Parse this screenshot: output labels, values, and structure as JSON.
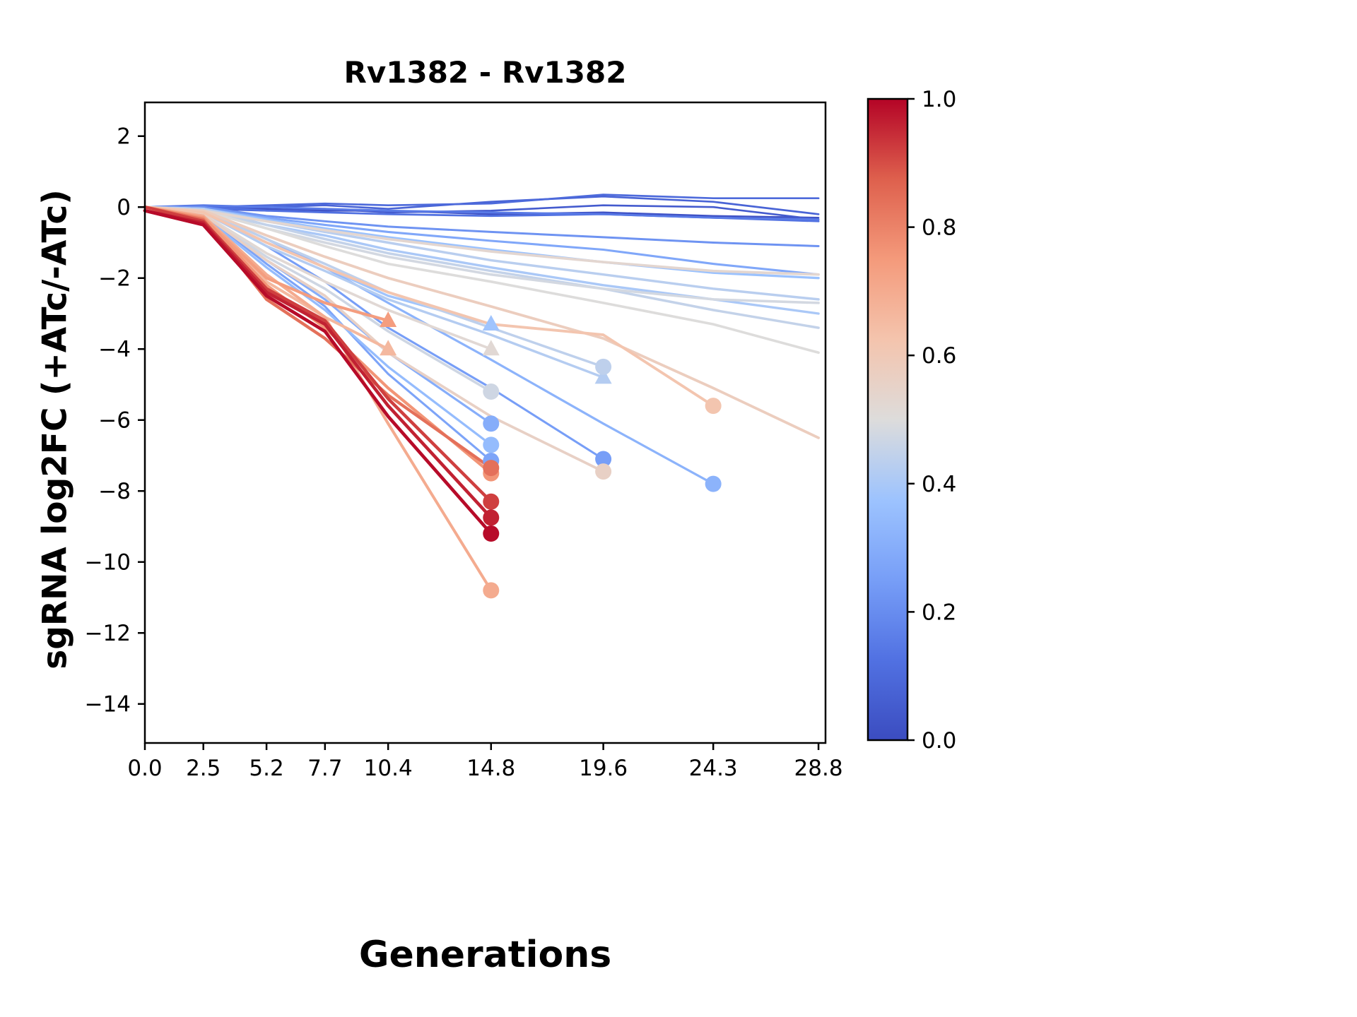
{
  "chart_data": {
    "type": "line",
    "title": "Rv1382 - Rv1382",
    "xlabel": "Generations",
    "ylabel": "sgRNA log2FC (+ATc/-ATc)",
    "x": [
      0.0,
      2.5,
      5.2,
      7.7,
      10.4,
      14.8,
      19.6,
      24.3,
      28.8
    ],
    "x_tick_labels": [
      "0.0",
      "2.5",
      "5.2",
      "7.7",
      "10.4",
      "14.8",
      "19.6",
      "24.3",
      "28.8"
    ],
    "y_ticks": [
      2,
      0,
      -2,
      -4,
      -6,
      -8,
      -10,
      -12,
      -14
    ],
    "y_tick_labels": [
      "2",
      "0",
      "−2",
      "−4",
      "−6",
      "−8",
      "−10",
      "−12",
      "−14"
    ],
    "xlim": [
      0,
      29.1
    ],
    "ylim": [
      -15.1,
      2.95
    ],
    "grid": false,
    "legend": "none",
    "plot_bg": "#ffffff",
    "colorbar": {
      "cmap": "coolwarm",
      "vmin": 0.0,
      "vmax": 1.0,
      "tick_values": [
        1.0,
        0.8,
        0.6,
        0.4,
        0.2,
        0.0
      ],
      "tick_labels": [
        "1.0",
        "0.8",
        "0.6",
        "0.4",
        "0.2",
        "0.0"
      ]
    },
    "series": [
      {
        "value": 0.99,
        "marker": "circle",
        "y": [
          -0.1,
          -0.5,
          -2.5,
          -3.5,
          -5.9,
          -9.2
        ]
      },
      {
        "value": 0.96,
        "marker": "circle",
        "y": [
          -0.1,
          -0.45,
          -2.4,
          -3.3,
          -5.6,
          -8.75
        ]
      },
      {
        "value": 0.92,
        "marker": "circle",
        "y": [
          0,
          -0.4,
          -2.3,
          -3.2,
          -5.4,
          -8.3
        ]
      },
      {
        "value": 0.84,
        "marker": "circle",
        "y": [
          0,
          -0.35,
          -2.6,
          -3.7,
          -5.3,
          -7.35
        ]
      },
      {
        "value": 0.76,
        "marker": "circle",
        "y": [
          0,
          -0.3,
          -2.2,
          -3.4,
          -5.1,
          -7.5
        ]
      },
      {
        "value": 0.7,
        "marker": "circle",
        "y": [
          0,
          -0.25,
          -1.9,
          -3.1,
          -6.1,
          -10.8
        ]
      },
      {
        "value": 0.74,
        "marker": "triangle",
        "y": [
          0,
          -0.3,
          -2.0,
          -2.7,
          -3.2
        ]
      },
      {
        "value": 0.66,
        "marker": "triangle",
        "y": [
          0,
          -0.35,
          -2.1,
          -3.1,
          -4.0
        ]
      },
      {
        "value": 0.52,
        "marker": "triangle",
        "y": [
          0,
          -0.2,
          -1.3,
          -2.1,
          -2.9,
          -4.0
        ]
      },
      {
        "value": 0.38,
        "marker": "triangle",
        "y": [
          0,
          -0.15,
          -1.0,
          -1.7,
          -2.5,
          -3.3
        ]
      },
      {
        "value": 0.42,
        "marker": "triangle",
        "y": [
          0,
          -0.15,
          -1.1,
          -1.8,
          -2.6,
          -3.6,
          -4.8
        ]
      },
      {
        "value": 0.47,
        "marker": "circle",
        "y": [
          0,
          -0.2,
          -1.4,
          -2.3,
          -3.5,
          -5.2
        ]
      },
      {
        "value": 0.44,
        "marker": "circle",
        "y": [
          0,
          -0.1,
          -0.9,
          -1.6,
          -2.4,
          -3.4,
          -4.5
        ]
      },
      {
        "value": 0.3,
        "marker": "circle",
        "y": [
          0,
          -0.2,
          -1.5,
          -2.6,
          -4.1,
          -6.1
        ]
      },
      {
        "value": 0.35,
        "marker": "circle",
        "y": [
          0,
          -0.25,
          -1.7,
          -2.9,
          -4.5,
          -6.7
        ]
      },
      {
        "value": 0.25,
        "marker": "circle",
        "y": [
          0,
          -0.15,
          -1.1,
          -2.1,
          -3.4,
          -5.1,
          -7.1
        ]
      },
      {
        "value": 0.32,
        "marker": "circle",
        "y": [
          0,
          -0.1,
          -0.9,
          -1.7,
          -2.7,
          -4.3,
          -6.1,
          -7.8
        ]
      },
      {
        "value": 0.27,
        "marker": "circle",
        "y": [
          0,
          -0.2,
          -1.6,
          -2.8,
          -4.7,
          -7.15
        ]
      },
      {
        "value": 0.56,
        "marker": "circle",
        "y": [
          0,
          -0.2,
          -1.5,
          -2.5,
          -4.1,
          -5.9,
          -7.45
        ]
      },
      {
        "value": 0.62,
        "marker": "circle",
        "y": [
          0,
          -0.15,
          -1.0,
          -1.7,
          -2.4,
          -3.3,
          -3.6,
          -5.6
        ]
      },
      {
        "value": 0.58,
        "marker": "none",
        "y": [
          0,
          -0.1,
          -0.8,
          -1.4,
          -2.0,
          -2.8,
          -3.7,
          -5.1,
          -6.5
        ]
      },
      {
        "value": 0.5,
        "marker": "none",
        "y": [
          0,
          -0.1,
          -0.6,
          -1.1,
          -1.6,
          -2.1,
          -2.7,
          -3.3,
          -4.1
        ]
      },
      {
        "value": 0.45,
        "marker": "none",
        "y": [
          0,
          -0.1,
          -0.5,
          -0.9,
          -1.3,
          -1.8,
          -2.3,
          -2.9,
          -3.4
        ]
      },
      {
        "value": 0.4,
        "marker": "none",
        "y": [
          0,
          -0.05,
          -0.5,
          -0.8,
          -1.2,
          -1.7,
          -2.2,
          -2.6,
          -3.0
        ]
      },
      {
        "value": 0.48,
        "marker": "none",
        "y": [
          0,
          -0.1,
          -0.6,
          -1.0,
          -1.4,
          -1.9,
          -2.3,
          -2.6,
          -2.7
        ]
      },
      {
        "value": 0.43,
        "marker": "none",
        "y": [
          0,
          -0.05,
          -0.4,
          -0.7,
          -1.0,
          -1.5,
          -1.9,
          -2.3,
          -2.6
        ]
      },
      {
        "value": 0.37,
        "marker": "none",
        "y": [
          0,
          -0.05,
          -0.35,
          -0.6,
          -0.85,
          -1.2,
          -1.55,
          -1.85,
          -2.0
        ]
      },
      {
        "value": 0.53,
        "marker": "none",
        "y": [
          0,
          -0.1,
          -0.4,
          -0.65,
          -0.9,
          -1.25,
          -1.55,
          -1.8,
          -1.9
        ]
      },
      {
        "value": 0.28,
        "marker": "none",
        "y": [
          0,
          -0.05,
          -0.3,
          -0.5,
          -0.7,
          -0.95,
          -1.2,
          -1.6,
          -1.9
        ]
      },
      {
        "value": 0.22,
        "marker": "none",
        "y": [
          0,
          0,
          -0.25,
          -0.4,
          -0.55,
          -0.7,
          -0.85,
          -1.0,
          -1.1
        ]
      },
      {
        "value": 0.15,
        "marker": "none",
        "y": [
          0,
          0.05,
          0,
          -0.05,
          -0.1,
          -0.15,
          -0.2,
          -0.3,
          -0.35
        ]
      },
      {
        "value": 0.12,
        "marker": "none",
        "y": [
          0,
          0,
          -0.1,
          -0.15,
          -0.2,
          -0.25,
          -0.2,
          -0.3,
          -0.4
        ]
      },
      {
        "value": 0.1,
        "marker": "none",
        "y": [
          0,
          0,
          0.05,
          0.1,
          0.05,
          0.1,
          0.35,
          0.25,
          0.25
        ]
      },
      {
        "value": 0.08,
        "marker": "none",
        "y": [
          0,
          -0.05,
          0,
          0.05,
          -0.05,
          0.15,
          0.3,
          0.15,
          -0.2
        ]
      },
      {
        "value": 0.05,
        "marker": "none",
        "y": [
          0,
          -0.05,
          -0.1,
          -0.05,
          -0.15,
          -0.1,
          0.05,
          0,
          -0.35
        ]
      },
      {
        "value": 0.02,
        "marker": "none",
        "y": [
          0,
          -0.05,
          -0.05,
          -0.1,
          -0.1,
          -0.2,
          -0.15,
          -0.25,
          -0.3
        ]
      }
    ]
  }
}
